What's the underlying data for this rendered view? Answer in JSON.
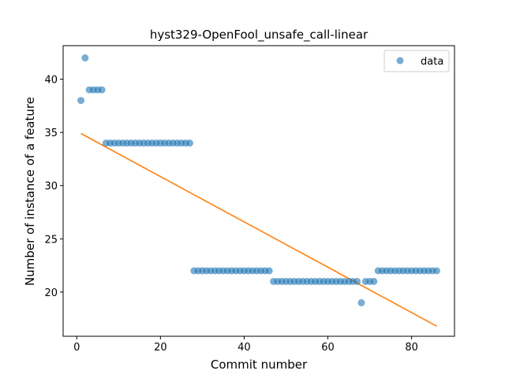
{
  "chart_data": {
    "type": "scatter",
    "title": "hyst329-OpenFool_unsafe_call-linear",
    "xlabel": "Commit number",
    "ylabel": "Number of instance of a feature",
    "xlim": [
      -3.25,
      90.25
    ],
    "ylim": [
      15.85,
      43.15
    ],
    "xticks": [
      0,
      20,
      40,
      60,
      80
    ],
    "yticks": [
      20,
      25,
      30,
      35,
      40
    ],
    "grid": false,
    "legend_position": "top-right",
    "colors": {
      "data": "#1f77b4",
      "fit": "#ff7f0e"
    },
    "series": [
      {
        "name": "data",
        "kind": "scatter",
        "x": [
          1,
          2,
          3,
          4,
          5,
          6,
          7,
          8,
          9,
          10,
          11,
          12,
          13,
          14,
          15,
          16,
          17,
          18,
          19,
          20,
          21,
          22,
          23,
          24,
          25,
          26,
          27,
          28,
          29,
          30,
          31,
          32,
          33,
          34,
          35,
          36,
          37,
          38,
          39,
          40,
          41,
          42,
          43,
          44,
          45,
          46,
          47,
          48,
          49,
          50,
          51,
          52,
          53,
          54,
          55,
          56,
          57,
          58,
          59,
          60,
          61,
          62,
          63,
          64,
          65,
          66,
          67,
          68,
          69,
          70,
          71,
          72,
          73,
          74,
          75,
          76,
          77,
          78,
          79,
          80,
          81,
          82,
          83,
          84,
          85,
          86
        ],
        "y": [
          38,
          42,
          39,
          39,
          39,
          39,
          34,
          34,
          34,
          34,
          34,
          34,
          34,
          34,
          34,
          34,
          34,
          34,
          34,
          34,
          34,
          34,
          34,
          34,
          34,
          34,
          34,
          22,
          22,
          22,
          22,
          22,
          22,
          22,
          22,
          22,
          22,
          22,
          22,
          22,
          22,
          22,
          22,
          22,
          22,
          22,
          21,
          21,
          21,
          21,
          21,
          21,
          21,
          21,
          21,
          21,
          21,
          21,
          21,
          21,
          21,
          21,
          21,
          21,
          21,
          21,
          21,
          19,
          21,
          21,
          21,
          22,
          22,
          22,
          22,
          22,
          22,
          22,
          22,
          22,
          22,
          22,
          22,
          22,
          22,
          22
        ]
      },
      {
        "kind": "line",
        "x": [
          1,
          86
        ],
        "y": [
          34.9,
          16.8
        ]
      }
    ]
  }
}
